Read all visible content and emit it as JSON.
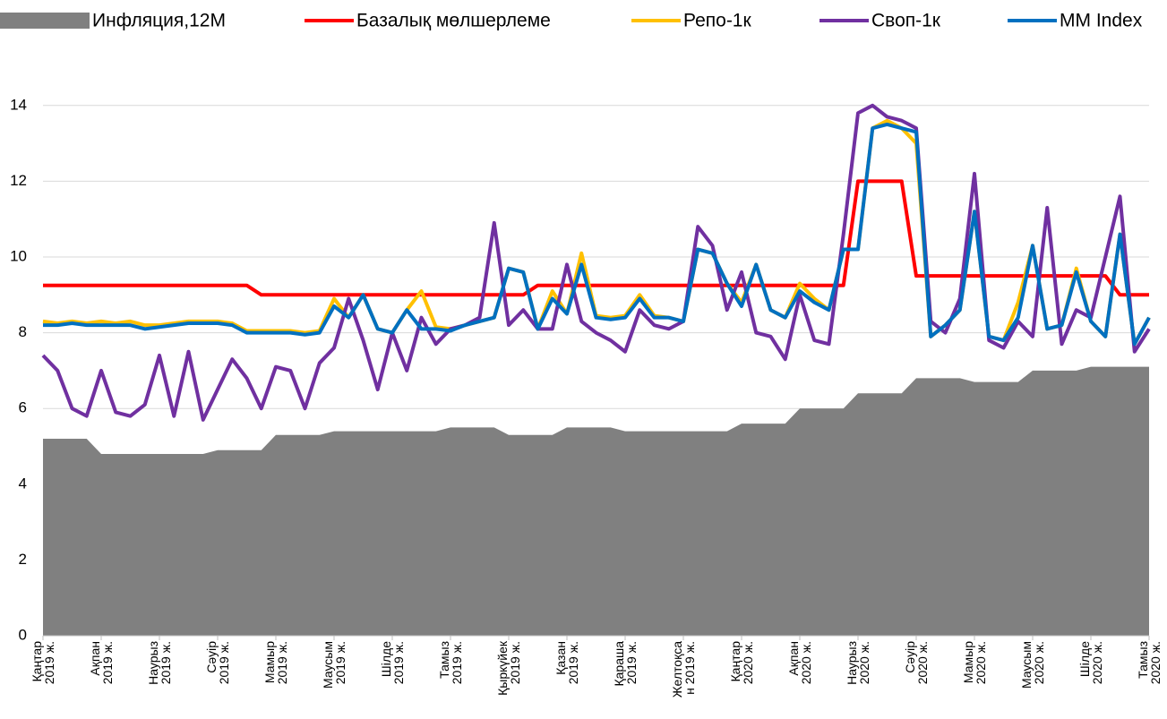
{
  "chart_data": {
    "type": "line",
    "categories": [
      "Қаңтар\n2019 ж.",
      null,
      null,
      null,
      "Ақпан\n2019 ж.",
      null,
      null,
      null,
      "Наурыз\n2019 ж.",
      null,
      null,
      null,
      "Сәуір\n2019 ж.",
      null,
      null,
      null,
      "Мамыр\n2019 ж.",
      null,
      null,
      null,
      "Маусым\n2019 ж.",
      null,
      null,
      null,
      "Шілде\n2019 ж.",
      null,
      null,
      null,
      "Тамыз\n2019 ж.",
      null,
      null,
      null,
      "Қыркүйек\n2019 ж.",
      null,
      null,
      null,
      "Қазан\n2019 ж.",
      null,
      null,
      null,
      "Қараша\n2019 ж.",
      null,
      null,
      null,
      "Желтоқса\nн 2019 ж.",
      null,
      null,
      null,
      "Қаңтар\n2020 ж.",
      null,
      null,
      null,
      "Ақпан\n2020 ж.",
      null,
      null,
      null,
      "Наурыз\n2020 ж.",
      null,
      null,
      null,
      "Сәуір\n2020 ж.",
      null,
      null,
      null,
      "Мамыр\n2020 ж.",
      null,
      null,
      null,
      "Маусым\n2020 ж.",
      null,
      null,
      null,
      "Шілде\n2020 ж.",
      null,
      null,
      null,
      "Тамыз\n2020 ж."
    ],
    "series": [
      {
        "name": "Инфляция,12М",
        "kind": "area",
        "color": "#808080",
        "values": [
          5.2,
          5.2,
          5.2,
          5.2,
          4.8,
          4.8,
          4.8,
          4.8,
          4.8,
          4.8,
          4.8,
          4.8,
          4.9,
          4.9,
          4.9,
          4.9,
          5.3,
          5.3,
          5.3,
          5.3,
          5.4,
          5.4,
          5.4,
          5.4,
          5.4,
          5.4,
          5.4,
          5.4,
          5.5,
          5.5,
          5.5,
          5.5,
          5.3,
          5.3,
          5.3,
          5.3,
          5.5,
          5.5,
          5.5,
          5.5,
          5.4,
          5.4,
          5.4,
          5.4,
          5.4,
          5.4,
          5.4,
          5.4,
          5.6,
          5.6,
          5.6,
          5.6,
          6.0,
          6.0,
          6.0,
          6.0,
          6.4,
          6.4,
          6.4,
          6.4,
          6.8,
          6.8,
          6.8,
          6.8,
          6.7,
          6.7,
          6.7,
          6.7,
          7.0,
          7.0,
          7.0,
          7.0,
          7.1,
          7.1,
          7.1,
          7.1,
          7.1
        ]
      },
      {
        "name": "Базалық мөлшерлеме",
        "color": "#ff0000",
        "values": [
          9.25,
          9.25,
          9.25,
          9.25,
          9.25,
          9.25,
          9.25,
          9.25,
          9.25,
          9.25,
          9.25,
          9.25,
          9.25,
          9.25,
          9.25,
          9.0,
          9.0,
          9.0,
          9.0,
          9.0,
          9.0,
          9.0,
          9.0,
          9.0,
          9.0,
          9.0,
          9.0,
          9.0,
          9.0,
          9.0,
          9.0,
          9.0,
          9.0,
          9.0,
          9.25,
          9.25,
          9.25,
          9.25,
          9.25,
          9.25,
          9.25,
          9.25,
          9.25,
          9.25,
          9.25,
          9.25,
          9.25,
          9.25,
          9.25,
          9.25,
          9.25,
          9.25,
          9.25,
          9.25,
          9.25,
          9.25,
          12.0,
          12.0,
          12.0,
          12.0,
          9.5,
          9.5,
          9.5,
          9.5,
          9.5,
          9.5,
          9.5,
          9.5,
          9.5,
          9.5,
          9.5,
          9.5,
          9.5,
          9.5,
          9.0,
          9.0,
          9.0
        ]
      },
      {
        "name": "Репо-1к",
        "color": "#ffc000",
        "values": [
          8.3,
          8.25,
          8.3,
          8.25,
          8.3,
          8.25,
          8.3,
          8.2,
          8.2,
          8.25,
          8.3,
          8.3,
          8.3,
          8.25,
          8.05,
          8.05,
          8.05,
          8.05,
          8.0,
          8.05,
          8.9,
          8.4,
          9.0,
          8.1,
          8.0,
          8.6,
          9.1,
          8.15,
          8.1,
          8.2,
          8.3,
          8.4,
          9.7,
          9.6,
          8.1,
          9.1,
          8.5,
          10.1,
          8.45,
          8.4,
          8.45,
          9.0,
          8.45,
          8.4,
          8.3,
          10.2,
          10.1,
          9.3,
          8.8,
          9.8,
          8.6,
          8.4,
          9.3,
          8.9,
          8.6,
          10.2,
          10.2,
          13.4,
          13.6,
          13.4,
          13.0,
          7.9,
          8.2,
          8.6,
          11.2,
          7.9,
          7.8,
          8.8,
          10.3,
          8.1,
          8.2,
          9.7,
          8.3,
          7.9,
          10.6,
          7.7,
          8.4
        ]
      },
      {
        "name": "Своп-1к",
        "color": "#7030a0",
        "values": [
          7.4,
          7.0,
          6.0,
          5.8,
          7.0,
          5.9,
          5.8,
          6.1,
          7.4,
          5.8,
          7.5,
          5.7,
          6.5,
          7.3,
          6.8,
          6.0,
          7.1,
          7.0,
          6.0,
          7.2,
          7.6,
          8.9,
          7.8,
          6.5,
          8.0,
          7.0,
          8.4,
          7.7,
          8.1,
          8.2,
          8.4,
          10.9,
          8.2,
          8.6,
          8.1,
          8.1,
          9.8,
          8.3,
          8.0,
          7.8,
          7.5,
          8.6,
          8.2,
          8.1,
          8.3,
          10.8,
          10.3,
          8.6,
          9.6,
          8.0,
          7.9,
          7.3,
          9.0,
          7.8,
          7.7,
          10.6,
          13.8,
          14.0,
          13.7,
          13.6,
          13.4,
          8.3,
          8.0,
          8.9,
          12.2,
          7.8,
          7.6,
          8.3,
          7.9,
          11.3,
          7.7,
          8.6,
          8.4,
          10.0,
          11.6,
          7.5,
          8.1
        ]
      },
      {
        "name": "MM Index",
        "color": "#0070c0",
        "values": [
          8.2,
          8.2,
          8.25,
          8.2,
          8.2,
          8.2,
          8.2,
          8.1,
          8.15,
          8.2,
          8.25,
          8.25,
          8.25,
          8.2,
          8.0,
          8.0,
          8.0,
          8.0,
          7.95,
          8.0,
          8.7,
          8.4,
          9.0,
          8.1,
          8.0,
          8.6,
          8.1,
          8.1,
          8.05,
          8.2,
          8.3,
          8.4,
          9.7,
          9.6,
          8.1,
          8.9,
          8.5,
          9.8,
          8.4,
          8.35,
          8.4,
          8.9,
          8.4,
          8.4,
          8.3,
          10.2,
          10.1,
          9.3,
          8.7,
          9.8,
          8.6,
          8.4,
          9.1,
          8.8,
          8.6,
          10.2,
          10.2,
          13.4,
          13.5,
          13.4,
          13.3,
          7.9,
          8.2,
          8.6,
          11.2,
          7.9,
          7.8,
          8.4,
          10.3,
          8.1,
          8.2,
          9.6,
          8.3,
          7.9,
          10.6,
          7.7,
          8.4
        ]
      }
    ],
    "ylim": [
      0,
      15
    ],
    "yticks": [
      0,
      2,
      4,
      6,
      8,
      10,
      12,
      14
    ],
    "grid": true,
    "legend": "top"
  }
}
